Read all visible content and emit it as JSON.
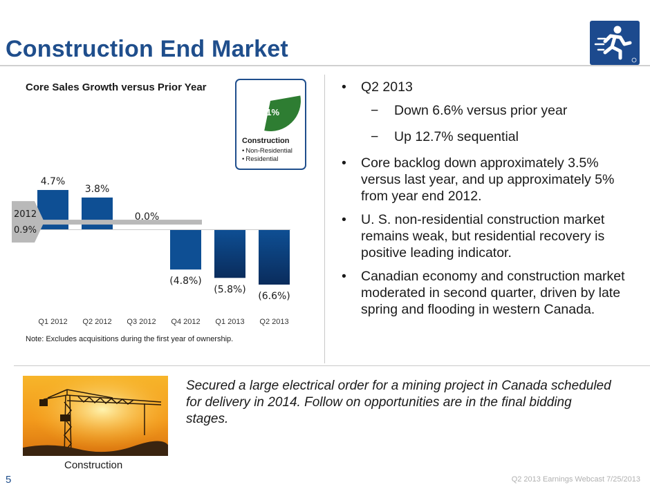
{
  "header": {
    "title": "Construction End Market"
  },
  "chart_data": {
    "type": "bar",
    "title": "Core Sales Growth versus Prior Year",
    "categories": [
      "Q1 2012",
      "Q2 2012",
      "Q3 2012",
      "Q4 2012",
      "Q1 2013",
      "Q2 2013"
    ],
    "values": [
      4.7,
      3.8,
      0.0,
      -4.8,
      -5.8,
      -6.6
    ],
    "data_labels": [
      "4.7%",
      "3.8%",
      "0.0%",
      "(4.8%)",
      "(5.8%)",
      "(6.6%)"
    ],
    "reference": {
      "label_year": "2012",
      "label_value": "0.9%",
      "value": 0.9
    },
    "ylim": [
      -8.5,
      7.0
    ],
    "grid": false,
    "colors": {
      "bar": "#0e4f94",
      "bar_dark": "#0a2c5c",
      "reference": "#b9b9b9"
    }
  },
  "chart_note": "Note:  Excludes acquisitions during the first year of ownership.",
  "pie_inset": {
    "value": 31,
    "percent_label": "31%",
    "label": "Construction",
    "items": [
      "Non-Residential",
      "Residential"
    ],
    "color": "#2e7d32"
  },
  "bullets": {
    "b1": "Q2 2013",
    "b1_sub1": "Down 6.6% versus prior year",
    "b1_sub2": "Up 12.7% sequential",
    "b2": "Core backlog down approximately 3.5% versus last year, and up approximately 5% from year end 2012.",
    "b3": "U. S. non-residential construction market remains weak, but residential recovery is positive leading indicator.",
    "b4": "Canadian economy and construction market moderated in second quarter, driven by late spring and flooding in western Canada."
  },
  "callout": "Secured a large electrical order for a mining project in Canada scheduled for delivery in 2014.  Follow on opportunities are in the final bidding stages.",
  "photo": {
    "caption": "Construction"
  },
  "footer": {
    "page": "5",
    "text": "Q2 2013 Earnings Webcast 7/25/2013"
  }
}
